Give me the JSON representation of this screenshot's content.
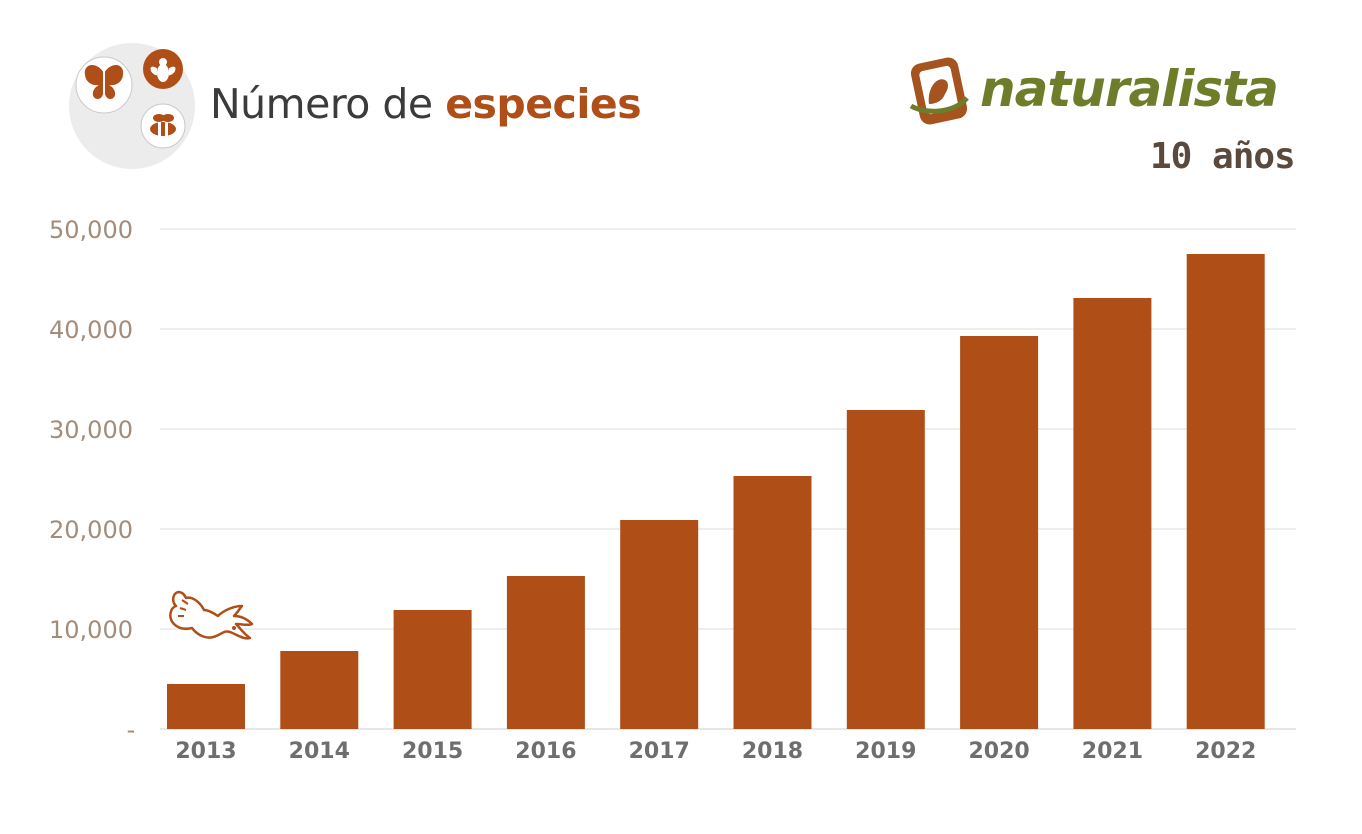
{
  "header": {
    "title_plain": "Número de ",
    "title_highlight": "especies"
  },
  "logo": {
    "name": "naturalista",
    "subtitle": "10 años"
  },
  "icons": [
    "butterfly-icon",
    "fly-icon",
    "bee-icon",
    "bird-icon"
  ],
  "colors": {
    "bar": "#b04e17",
    "title_highlight": "#b04e17",
    "title": "#3b3b3b",
    "grid": "#dedede",
    "ytick": "#a28c7a",
    "xtick": "#6e6e6e",
    "logo_green": "#6e7d2a",
    "logo_brown": "#a5531f"
  },
  "chart_data": {
    "type": "bar",
    "title": "Número de especies",
    "categories": [
      "2013",
      "2014",
      "2015",
      "2016",
      "2017",
      "2018",
      "2019",
      "2020",
      "2021",
      "2022"
    ],
    "values": [
      4500,
      7800,
      11900,
      15300,
      20900,
      25300,
      31900,
      39300,
      43100,
      47500
    ],
    "ylim": [
      0,
      50000
    ],
    "yticks": [
      0,
      10000,
      20000,
      30000,
      40000,
      50000
    ],
    "ytick_labels": [
      "-",
      "10,000",
      "20,000",
      "30,000",
      "40,000",
      "50,000"
    ],
    "xlabel": "",
    "ylabel": "",
    "grid": true,
    "legend": "none"
  }
}
